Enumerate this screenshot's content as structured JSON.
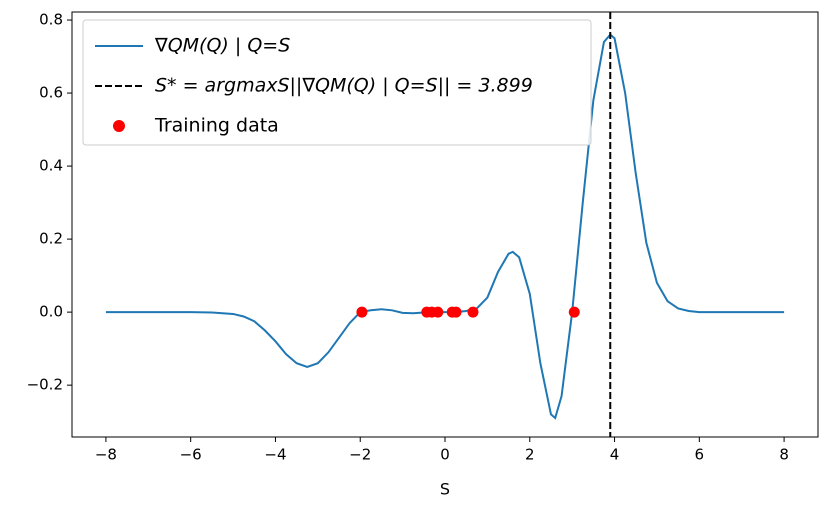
{
  "chart_data": {
    "type": "line",
    "xlabel": "S",
    "xlim": [
      -8.8,
      8.8
    ],
    "ylim": [
      -0.342,
      0.822
    ],
    "xticks": [
      {
        "value": -8,
        "label": "−8"
      },
      {
        "value": -6,
        "label": "−6"
      },
      {
        "value": -4,
        "label": "−4"
      },
      {
        "value": -2,
        "label": "−2"
      },
      0,
      2,
      4,
      6,
      8
    ],
    "yticks": [
      {
        "value": -0.2,
        "label": "−0.2"
      },
      {
        "value": 0,
        "label": "0.0"
      },
      {
        "value": 0.2,
        "label": "0.2"
      },
      {
        "value": 0.4,
        "label": "0.4"
      },
      {
        "value": 0.6,
        "label": "0.6"
      },
      {
        "value": 0.8,
        "label": "0.8"
      }
    ],
    "legend": "upper left",
    "series": [
      {
        "name": "∇QM(Q) | Q=S",
        "color": "#1f77b4",
        "kind": "line",
        "x": [
          -8,
          -7,
          -6,
          -5.5,
          -5,
          -4.75,
          -4.5,
          -4.25,
          -4,
          -3.75,
          -3.5,
          -3.25,
          -3,
          -2.75,
          -2.5,
          -2.25,
          -2,
          -1.75,
          -1.5,
          -1.25,
          -1,
          -0.75,
          -0.5,
          -0.25,
          0,
          0.25,
          0.5,
          0.75,
          1,
          1.25,
          1.5,
          1.6,
          1.75,
          2,
          2.25,
          2.5,
          2.6,
          2.75,
          3,
          3.25,
          3.5,
          3.75,
          3.9,
          4,
          4.25,
          4.5,
          4.75,
          5,
          5.25,
          5.5,
          5.75,
          6,
          7,
          8
        ],
        "values": [
          0,
          0,
          0,
          -0.001,
          -0.005,
          -0.012,
          -0.025,
          -0.05,
          -0.08,
          -0.115,
          -0.14,
          -0.15,
          -0.14,
          -0.11,
          -0.07,
          -0.03,
          0,
          0.005,
          0.008,
          0.005,
          -0.002,
          -0.003,
          -0.001,
          0,
          0,
          0,
          0.003,
          0.01,
          0.04,
          0.11,
          0.16,
          0.165,
          0.15,
          0.05,
          -0.14,
          -0.28,
          -0.29,
          -0.23,
          0,
          0.3,
          0.58,
          0.74,
          0.76,
          0.75,
          0.6,
          0.38,
          0.19,
          0.08,
          0.03,
          0.01,
          0.003,
          0,
          0,
          0
        ]
      },
      {
        "name": "S* = argmaxS||∇QM(Q) | Q=S|| = 3.899",
        "color": "#000000",
        "kind": "vline",
        "x": 3.899
      },
      {
        "name": "Training data",
        "color": "#ff0000",
        "kind": "scatter",
        "x": [
          -1.96,
          -0.43,
          -0.31,
          -0.17,
          0.17,
          0.26,
          0.66,
          3.05
        ],
        "values": [
          0,
          0,
          0,
          0,
          0,
          0,
          0,
          0
        ]
      }
    ]
  }
}
